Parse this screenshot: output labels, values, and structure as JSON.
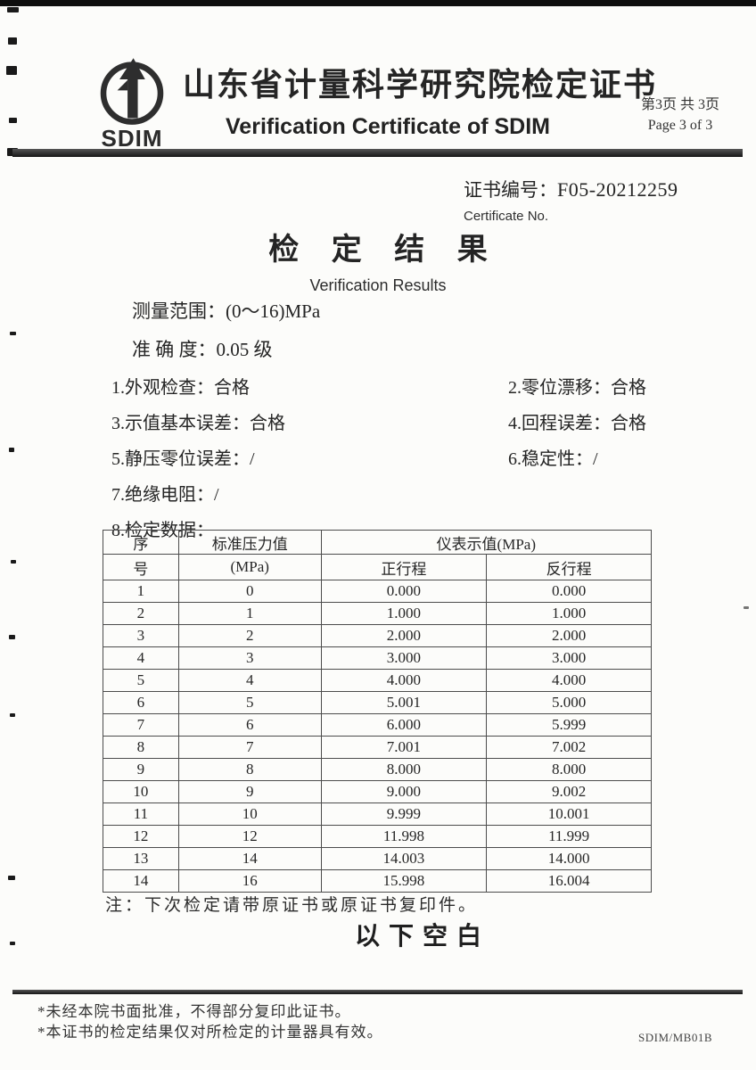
{
  "header": {
    "logo": "SDIM",
    "title_zh": "山东省计量科学研究院检定证书",
    "title_en": "Verification Certificate of SDIM",
    "page_zh": "第3页 共 3页",
    "page_en": "Page 3  of 3"
  },
  "cert_no": {
    "label_zh": "证书编号：",
    "value": "F05-20212259",
    "label_en": "Certificate No."
  },
  "results": {
    "title_zh": "检 定 结 果",
    "title_en": "Verification Results",
    "range_label": "测量范围：",
    "range_value": "(0～16)MPa",
    "accuracy_label": "准 确 度：",
    "accuracy_value": "0.05 级",
    "items": [
      {
        "label": "1.外观检查：",
        "value": "合格"
      },
      {
        "label": "2.零位漂移：",
        "value": "合格"
      },
      {
        "label": "3.示值基本误差：",
        "value": "合格"
      },
      {
        "label": "4.回程误差：",
        "value": "合格"
      },
      {
        "label": "5.静压零位误差：",
        "value": "/"
      },
      {
        "label": "6.稳定性：",
        "value": "/"
      },
      {
        "label": "7.绝缘电阻：",
        "value": "/"
      },
      {
        "label": "8.检定数据：",
        "value": ""
      }
    ]
  },
  "table": {
    "col_seq_line1": "序",
    "col_seq_line2": "号",
    "col_std_line1": "标准压力值",
    "col_std_line2": "(MPa)",
    "col_indication": "仪表示值(MPa)",
    "col_up": "正行程",
    "col_down": "反行程",
    "rows": [
      [
        "1",
        "0",
        "0.000",
        "0.000"
      ],
      [
        "2",
        "1",
        "1.000",
        "1.000"
      ],
      [
        "3",
        "2",
        "2.000",
        "2.000"
      ],
      [
        "4",
        "3",
        "3.000",
        "3.000"
      ],
      [
        "5",
        "4",
        "4.000",
        "4.000"
      ],
      [
        "6",
        "5",
        "5.001",
        "5.000"
      ],
      [
        "7",
        "6",
        "6.000",
        "5.999"
      ],
      [
        "8",
        "7",
        "7.001",
        "7.002"
      ],
      [
        "9",
        "8",
        "8.000",
        "8.000"
      ],
      [
        "10",
        "9",
        "9.000",
        "9.002"
      ],
      [
        "11",
        "10",
        "9.999",
        "10.001"
      ],
      [
        "12",
        "12",
        "11.998",
        "11.999"
      ],
      [
        "13",
        "14",
        "14.003",
        "14.000"
      ],
      [
        "14",
        "16",
        "15.998",
        "16.004"
      ]
    ]
  },
  "note": "注：下次检定请带原证书或原证书复印件。",
  "blank_below": "以下空白",
  "footnotes": [
    "*未经本院书面批准，不得部分复印此证书。",
    "*本证书的检定结果仅对所检定的计量器具有效。"
  ],
  "form_code": "SDIM/MB01B"
}
